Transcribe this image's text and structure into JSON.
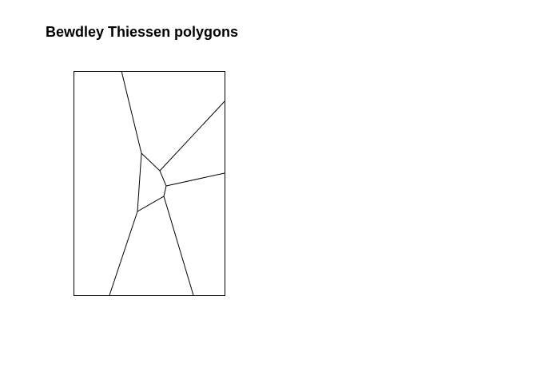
{
  "title": "Bewdley Thiessen polygons"
}
